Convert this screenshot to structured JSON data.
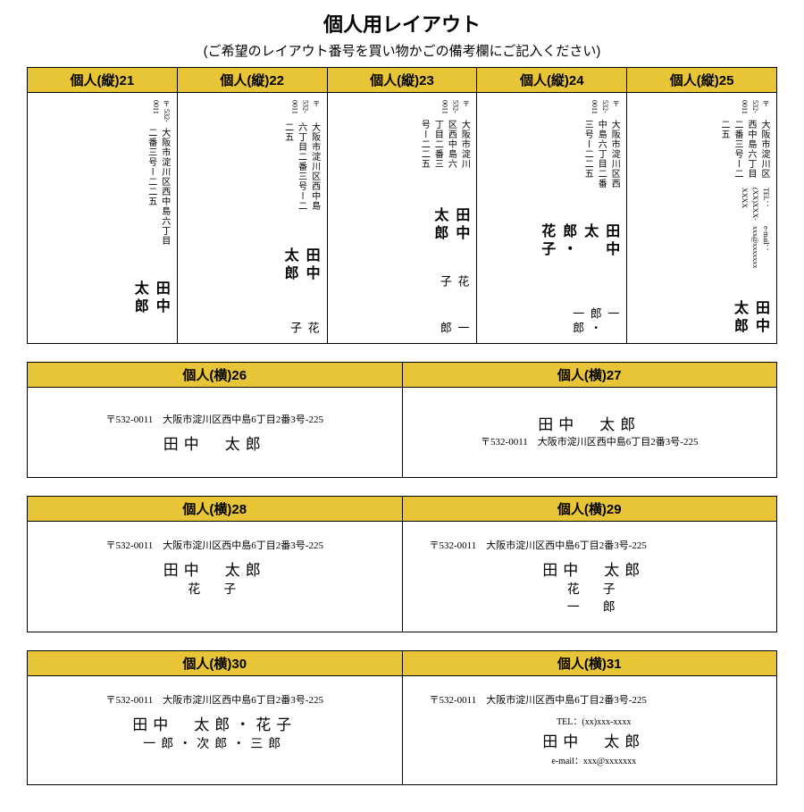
{
  "colors": {
    "header_bg": "#e8c437",
    "border": "#000000",
    "bg": "#ffffff"
  },
  "title": "個人用レイアウト",
  "subtitle": "(ご希望のレイアウト番号を買い物かごの備考欄にご記入ください)",
  "postal": "〒532-0011",
  "postal_v": "〒 532-0011",
  "address": "大阪市淀川区西中島六丁目二番三号ー二二五",
  "address_h": "〒532-0011　大阪市淀川区西中島6丁目2番3号-225",
  "tel": "TEL：(XX)XXX-XXXX",
  "tel_h": "TEL：(xx)xxx-xxxx",
  "email": "e-mail：xxx@xxxxxxx",
  "name_taro": "田中　太郎",
  "name_hanako": "花子",
  "name_ichiro": "一郎",
  "cards_v": [
    {
      "h": "個人(縦)21"
    },
    {
      "h": "個人(縦)22"
    },
    {
      "h": "個人(縦)23"
    },
    {
      "h": "個人(縦)24"
    },
    {
      "h": "個人(縦)25"
    }
  ],
  "c24_line1": "田中　太郎・花子",
  "c24_line2": "一郎・一郎",
  "cards_h": [
    {
      "h": "個人(横)26"
    },
    {
      "h": "個人(横)27"
    },
    {
      "h": "個人(横)28"
    },
    {
      "h": "個人(横)29"
    },
    {
      "h": "個人(横)30"
    },
    {
      "h": "個人(横)31"
    }
  ],
  "c29_l2": "花　子",
  "c29_l3": "一　郎",
  "c30_l1": "田中　太郎・花子",
  "c30_l2": "一郎・次郎・三郎"
}
